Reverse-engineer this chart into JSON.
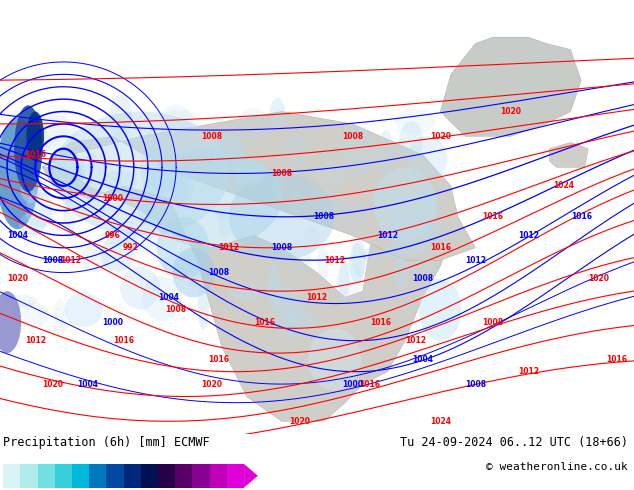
{
  "title_left": "Precipitation (6h) [mm] ECMWF",
  "title_right": "Tu 24-09-2024 06..12 UTC (18+66)",
  "copyright": "© weatheronline.co.uk",
  "colorbar_levels": [
    0.1,
    0.5,
    1,
    2,
    5,
    10,
    15,
    20,
    25,
    30,
    35,
    40,
    45,
    50
  ],
  "colorbar_colors": [
    "#d8f5f5",
    "#b0ecec",
    "#70e0e0",
    "#38d0d8",
    "#00b8d8",
    "#0078c0",
    "#0048a0",
    "#002878",
    "#001050",
    "#280048",
    "#580068",
    "#880090",
    "#c000b8",
    "#e000d8"
  ],
  "ocean_color": "#b8d4e8",
  "land_color": "#d0cec8",
  "precip_light_color": "#c0e8f0",
  "fig_width": 6.34,
  "fig_height": 4.9,
  "dpi": 100,
  "bottom_bg": "#ffffff",
  "map_bg": "#b8ccd8"
}
